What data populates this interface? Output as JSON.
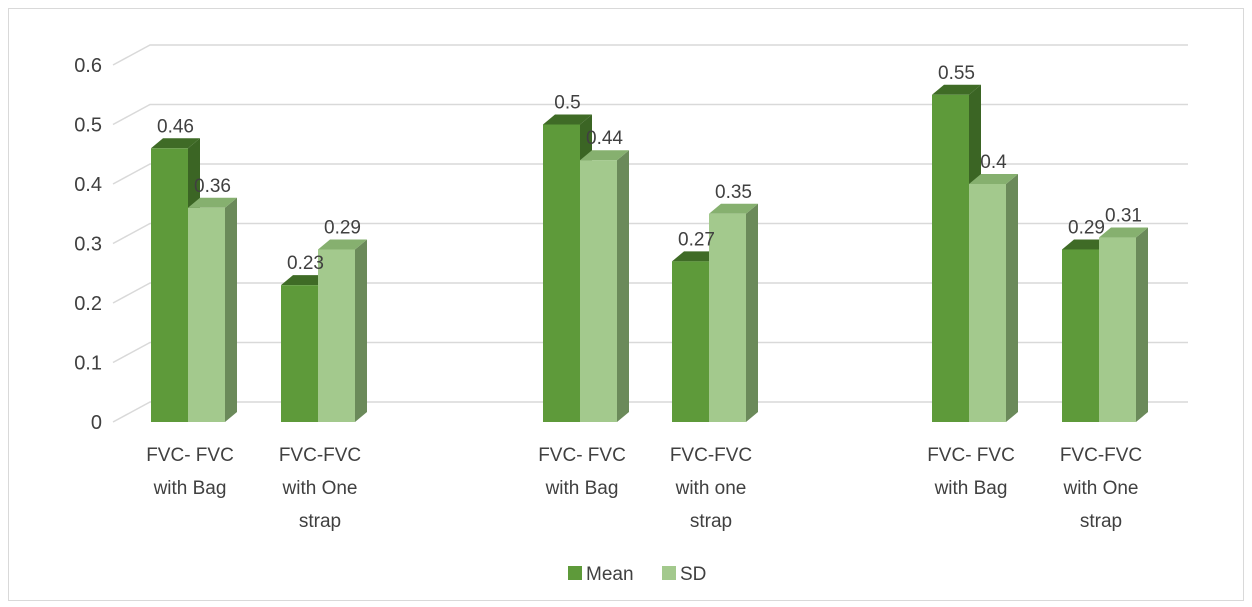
{
  "chart_data": {
    "type": "bar",
    "style": "3d-clustered-column",
    "groups": [
      {
        "categories": [
          "FVC- FVC with Bag",
          "FVC-FVC with One strap"
        ]
      },
      {
        "categories": [
          "FVC- FVC with Bag",
          "FVC-FVC with one strap"
        ]
      },
      {
        "categories": [
          "FVC- FVC with Bag",
          "FVC-FVC with One strap"
        ]
      }
    ],
    "categories": [
      "FVC- FVC with Bag",
      "FVC-FVC with One strap",
      "FVC- FVC with Bag",
      "FVC-FVC with one strap",
      "FVC- FVC with Bag",
      "FVC-FVC with One strap"
    ],
    "series": [
      {
        "name": "Mean",
        "values": [
          0.46,
          0.23,
          0.5,
          0.27,
          0.55,
          0.29
        ],
        "labels": [
          "0.46",
          "0.23",
          "0.5",
          "0.27",
          "0.55",
          "0.29"
        ]
      },
      {
        "name": "SD",
        "values": [
          0.36,
          0.29,
          0.44,
          0.35,
          0.4,
          0.31
        ],
        "labels": [
          "0.36",
          "0.29",
          "0.44",
          "0.35",
          "0.4",
          "0.31"
        ]
      }
    ],
    "yticks": [
      "0",
      "0.1",
      "0.2",
      "0.3",
      "0.4",
      "0.5",
      "0.6"
    ],
    "ylim": [
      0,
      0.6
    ],
    "grid": true,
    "legend": "bottom",
    "colors": {
      "Mean": {
        "front": "#5e9a3a",
        "side": "#3b6524",
        "top": "#3f6b26"
      },
      "SD": {
        "front": "#a3c98d",
        "side": "#6b8a5a",
        "top": "#86b06f"
      },
      "grid": "#d9d9d9",
      "text": "#404040"
    }
  }
}
